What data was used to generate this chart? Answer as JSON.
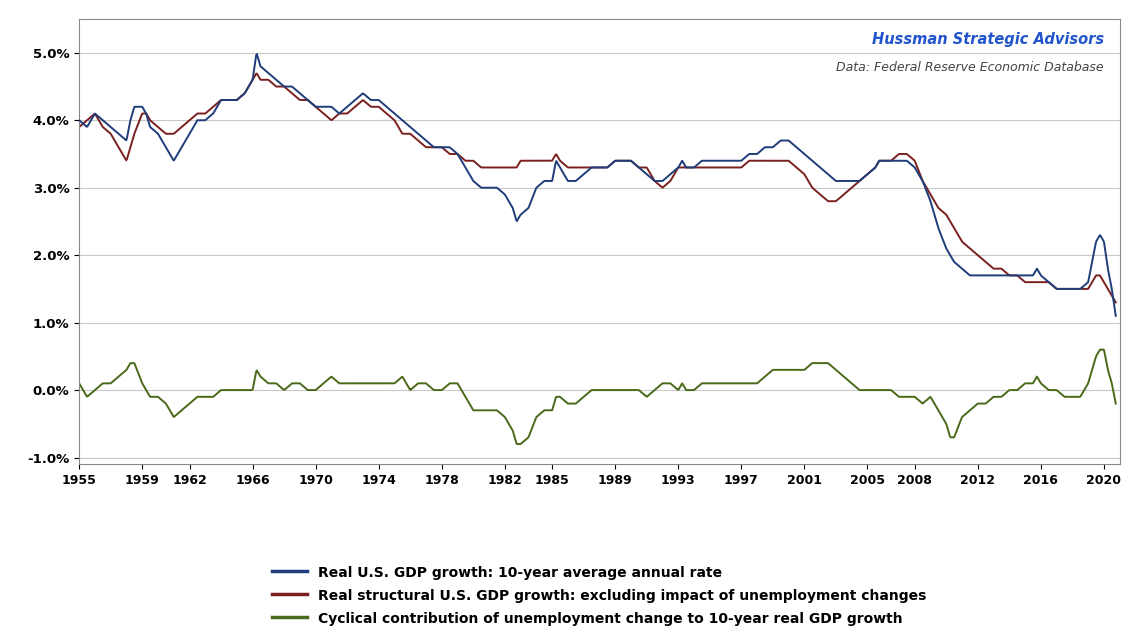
{
  "annotation_line1": "Hussman Strategic Advisors",
  "annotation_line2": "Data: Federal Reserve Economic Database",
  "xlim": [
    1955,
    2021
  ],
  "ylim": [
    -0.011,
    0.055
  ],
  "yticks": [
    -0.01,
    0.0,
    0.01,
    0.02,
    0.03,
    0.04,
    0.05
  ],
  "xticks": [
    1955,
    1959,
    1962,
    1966,
    1970,
    1974,
    1978,
    1982,
    1985,
    1989,
    1993,
    1997,
    2001,
    2005,
    2008,
    2012,
    2016,
    2020
  ],
  "line1_color": "#1f3d7a",
  "line2_color": "#7b2020",
  "line3_color": "#4a6a1a",
  "legend1": "Real U.S. GDP growth: 10-year average annual rate",
  "legend2": "Real structural U.S. GDP growth: excluding impact of unemployment changes",
  "legend3": "Cyclical contribution of unemployment change to 10-year real GDP growth",
  "background_color": "#ffffff",
  "grid_color": "#c8c8c8"
}
